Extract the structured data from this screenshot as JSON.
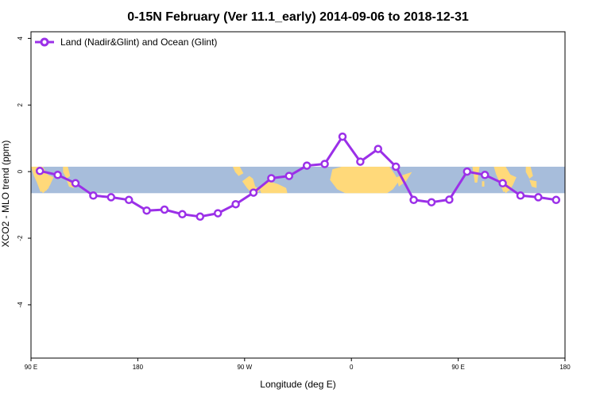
{
  "chart_data": {
    "type": "line",
    "title": "0-15N February (Ver 11.1_early)   2014-09-06 to 2018-12-31",
    "xlabel": "Longitude (deg E)",
    "ylabel": "XCO2 - MLO trend (ppm)",
    "x_ticks": [
      {
        "value": 90,
        "label": "90 E"
      },
      {
        "value": 180,
        "label": "180"
      },
      {
        "value": 270,
        "label": "90 W"
      },
      {
        "value": 360,
        "label": "0"
      },
      {
        "value": 450,
        "label": "90 E"
      },
      {
        "value": 540,
        "label": "180"
      }
    ],
    "y_ticks": [
      4,
      2,
      0,
      -2,
      -4
    ],
    "xlim": [
      90,
      540
    ],
    "ylim": [
      -5.6,
      4.2
    ],
    "band": {
      "y_min": -0.65,
      "y_max": 0.15,
      "ocean_color": "#a7bddb",
      "land_color": "#ffd97a"
    },
    "grid": false,
    "legend_position": "top-left",
    "series": [
      {
        "name": "Land (Nadir&Glint) and Ocean (Glint)",
        "color": "#9b30e8",
        "x": [
          97.5,
          112.5,
          127.5,
          142.5,
          157.5,
          172.5,
          187.5,
          202.5,
          217.5,
          232.5,
          247.5,
          262.5,
          277.5,
          292.5,
          307.5,
          322.5,
          337.5,
          352.5,
          367.5,
          382.5,
          397.5,
          412.5,
          427.5,
          442.5,
          457.5,
          472.5,
          487.5,
          502.5,
          517.5,
          532.5
        ],
        "y": [
          0.02,
          -0.1,
          -0.35,
          -0.72,
          -0.77,
          -0.85,
          -1.17,
          -1.14,
          -1.28,
          -1.35,
          -1.25,
          -0.98,
          -0.63,
          -0.2,
          -0.13,
          0.18,
          0.23,
          1.05,
          0.3,
          0.68,
          0.15,
          -0.85,
          -0.92,
          -0.84,
          0.0,
          -0.1,
          -0.35,
          -0.72,
          -0.77,
          -0.85
        ]
      }
    ]
  }
}
